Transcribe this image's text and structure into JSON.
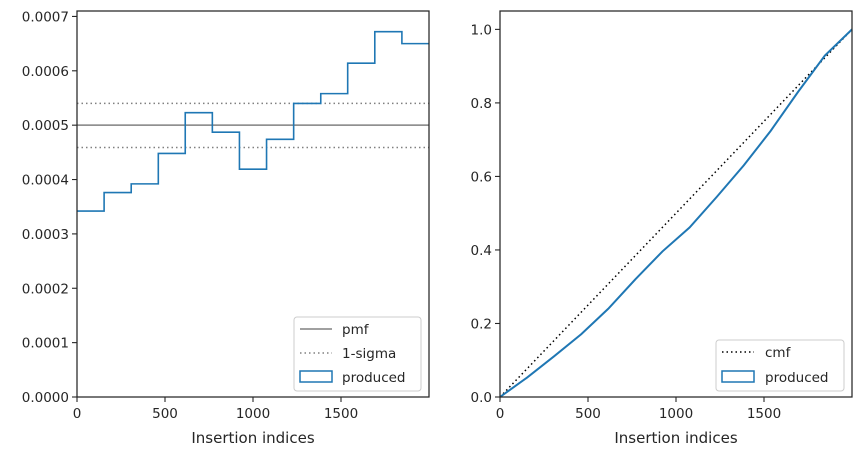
{
  "colors": {
    "produced": "#1f77b4",
    "pmf": "#808080",
    "sigma": "#808080",
    "cmf": "#000000",
    "axes": "#262626"
  },
  "chart_data": [
    {
      "type": "line",
      "subtype": "step-histogram",
      "title": "",
      "xlabel": "Insertion indices",
      "ylabel": "",
      "xlim": [
        0,
        2000
      ],
      "ylim": [
        0,
        0.00071
      ],
      "xticks": [
        0,
        500,
        1000,
        1500
      ],
      "xtick_labels": [
        "0",
        "500",
        "1000",
        "1500"
      ],
      "yticks": [
        0,
        0.0001,
        0.0002,
        0.0003,
        0.0004,
        0.0005,
        0.0006,
        0.0007
      ],
      "ytick_labels": [
        "0.0000",
        "0.0001",
        "0.0002",
        "0.0003",
        "0.0004",
        "0.0005",
        "0.0006",
        "0.0007"
      ],
      "grid": false,
      "legend_position": "lower-right",
      "series": [
        {
          "name": "pmf",
          "kind": "hline",
          "style": "solid",
          "y": 0.0005
        },
        {
          "name": "1-sigma",
          "kind": "hline-pair",
          "style": "dotted",
          "y": [
            0.000459,
            0.00054
          ]
        },
        {
          "name": "produced",
          "kind": "step",
          "bin_edges": [
            0,
            154,
            308,
            462,
            615,
            769,
            923,
            1077,
            1231,
            1385,
            1538,
            1692,
            1846,
            2000
          ],
          "values": [
            0.000342,
            0.000376,
            0.000392,
            0.000448,
            0.000523,
            0.000487,
            0.000419,
            0.000474,
            0.00054,
            0.000558,
            0.000614,
            0.000672,
            0.00065
          ]
        }
      ]
    },
    {
      "type": "line",
      "title": "",
      "xlabel": "Insertion indices",
      "ylabel": "",
      "xlim": [
        0,
        2000
      ],
      "ylim": [
        0,
        1.05
      ],
      "xticks": [
        0,
        500,
        1000,
        1500
      ],
      "xtick_labels": [
        "0",
        "500",
        "1000",
        "1500"
      ],
      "yticks": [
        0,
        0.2,
        0.4,
        0.6,
        0.8,
        1.0
      ],
      "ytick_labels": [
        "0.0",
        "0.2",
        "0.4",
        "0.6",
        "0.8",
        "1.0"
      ],
      "grid": false,
      "legend_position": "lower-right",
      "series": [
        {
          "name": "cmf",
          "style": "dotted",
          "x": [
            0,
            2000
          ],
          "y": [
            0,
            1.0
          ]
        },
        {
          "name": "produced",
          "style": "solid",
          "x": [
            0,
            154,
            308,
            462,
            615,
            769,
            923,
            1077,
            1231,
            1385,
            1538,
            1692,
            1846,
            2000
          ],
          "y": [
            0,
            0.053,
            0.111,
            0.171,
            0.24,
            0.32,
            0.396,
            0.461,
            0.544,
            0.63,
            0.724,
            0.829,
            0.929,
            1.0
          ]
        }
      ]
    }
  ]
}
